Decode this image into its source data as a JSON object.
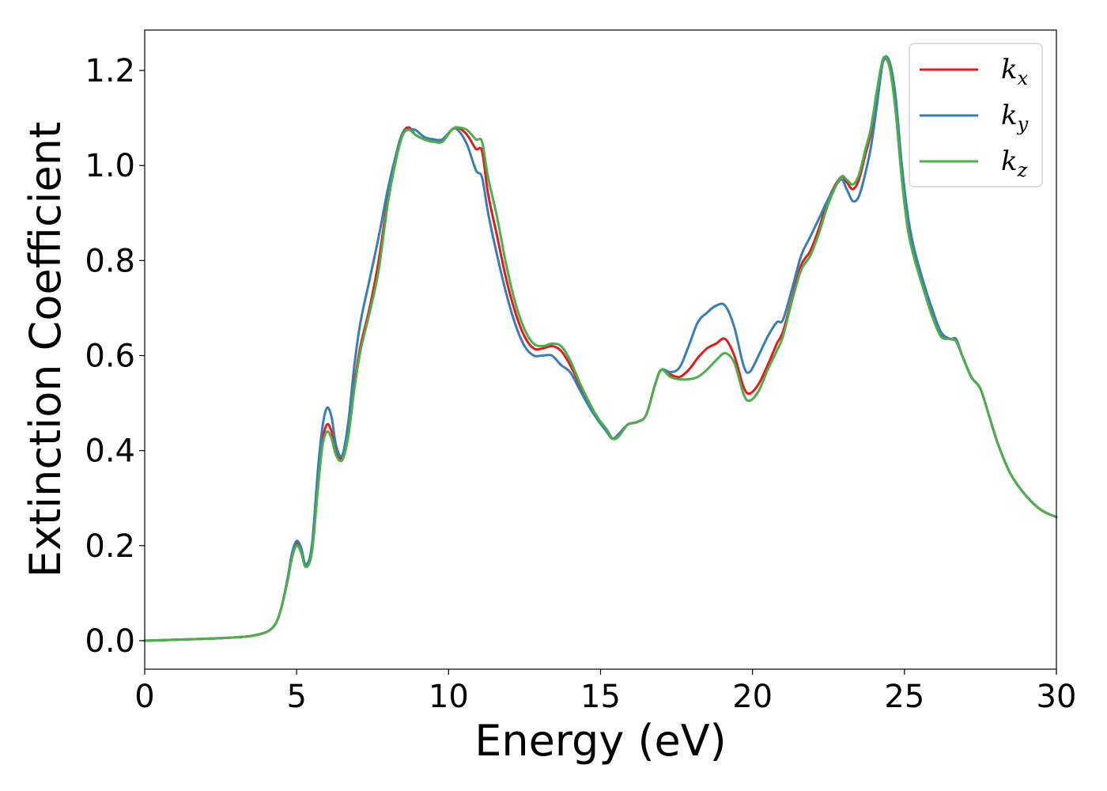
{
  "chart_data": {
    "type": "line",
    "xlabel": "Energy (eV)",
    "ylabel": "Extinction Coefficient",
    "xlim": [
      0,
      30
    ],
    "ylim": [
      -0.06,
      1.285
    ],
    "xticks": [
      0,
      5,
      10,
      15,
      20,
      25,
      30
    ],
    "yticks": [
      0.0,
      0.2,
      0.4,
      0.6,
      0.8,
      1.0,
      1.2
    ],
    "xtick_labels": [
      "0",
      "5",
      "10",
      "15",
      "20",
      "25",
      "30"
    ],
    "ytick_labels": [
      "0.0",
      "0.2",
      "0.4",
      "0.6",
      "0.8",
      "1.0",
      "1.2"
    ],
    "grid": false,
    "legend_position": "top-right",
    "series": [
      {
        "name": "k",
        "subscript": "x",
        "color": "#e41a1c",
        "x": [
          0,
          1,
          2,
          3,
          3.5,
          4,
          4.3,
          4.5,
          4.7,
          4.85,
          5.0,
          5.15,
          5.3,
          5.5,
          5.7,
          5.85,
          6.0,
          6.15,
          6.3,
          6.5,
          6.7,
          6.9,
          7.1,
          7.4,
          7.7,
          8.0,
          8.3,
          8.5,
          8.7,
          8.9,
          9.2,
          9.5,
          9.8,
          10.1,
          10.3,
          10.6,
          10.9,
          11.1,
          11.3,
          11.6,
          11.9,
          12.2,
          12.5,
          12.8,
          13.1,
          13.4,
          13.7,
          14.0,
          14.3,
          14.6,
          14.9,
          15.2,
          15.4,
          15.6,
          15.9,
          16.2,
          16.5,
          16.8,
          17.0,
          17.3,
          17.6,
          17.9,
          18.2,
          18.5,
          18.8,
          19.1,
          19.4,
          19.7,
          19.9,
          20.2,
          20.5,
          20.8,
          21.0,
          21.3,
          21.6,
          21.9,
          22.2,
          22.5,
          22.9,
          23.1,
          23.3,
          23.5,
          23.7,
          23.9,
          24.1,
          24.3,
          24.5,
          24.7,
          24.9,
          25.1,
          25.3,
          25.6,
          25.9,
          26.2,
          26.5,
          26.7,
          26.9,
          27.2,
          27.5,
          27.8,
          28.1,
          28.5,
          29.0,
          29.5,
          30.0
        ],
        "y": [
          0,
          0.002,
          0.004,
          0.007,
          0.01,
          0.018,
          0.035,
          0.07,
          0.13,
          0.18,
          0.205,
          0.19,
          0.16,
          0.19,
          0.33,
          0.42,
          0.455,
          0.44,
          0.4,
          0.385,
          0.44,
          0.54,
          0.62,
          0.7,
          0.8,
          0.93,
          1.03,
          1.07,
          1.08,
          1.065,
          1.055,
          1.05,
          1.055,
          1.075,
          1.08,
          1.065,
          1.035,
          1.03,
          0.94,
          0.85,
          0.76,
          0.69,
          0.64,
          0.615,
          0.615,
          0.62,
          0.61,
          0.58,
          0.54,
          0.5,
          0.47,
          0.44,
          0.425,
          0.435,
          0.455,
          0.46,
          0.475,
          0.54,
          0.57,
          0.56,
          0.555,
          0.57,
          0.595,
          0.615,
          0.625,
          0.635,
          0.6,
          0.535,
          0.52,
          0.54,
          0.58,
          0.625,
          0.65,
          0.72,
          0.79,
          0.82,
          0.87,
          0.93,
          0.975,
          0.965,
          0.95,
          0.97,
          1.02,
          1.07,
          1.15,
          1.22,
          1.21,
          1.13,
          0.99,
          0.88,
          0.82,
          0.75,
          0.69,
          0.645,
          0.635,
          0.63,
          0.6,
          0.555,
          0.53,
          0.47,
          0.41,
          0.35,
          0.305,
          0.275,
          0.26
        ]
      },
      {
        "name": "k",
        "subscript": "y",
        "color": "#377eb8",
        "x": [
          0,
          1,
          2,
          3,
          3.5,
          4,
          4.3,
          4.5,
          4.7,
          4.85,
          5.0,
          5.15,
          5.3,
          5.5,
          5.7,
          5.85,
          6.0,
          6.15,
          6.3,
          6.5,
          6.7,
          6.9,
          7.1,
          7.4,
          7.7,
          8.0,
          8.3,
          8.5,
          8.7,
          8.9,
          9.2,
          9.5,
          9.8,
          10.1,
          10.3,
          10.6,
          10.9,
          11.1,
          11.3,
          11.6,
          11.9,
          12.2,
          12.5,
          12.8,
          13.1,
          13.4,
          13.7,
          14.0,
          14.3,
          14.6,
          14.9,
          15.2,
          15.4,
          15.6,
          15.9,
          16.2,
          16.5,
          16.8,
          17.0,
          17.3,
          17.6,
          17.9,
          18.2,
          18.5,
          18.8,
          19.1,
          19.4,
          19.7,
          19.9,
          20.2,
          20.5,
          20.8,
          21.0,
          21.3,
          21.6,
          21.9,
          22.2,
          22.5,
          22.9,
          23.1,
          23.3,
          23.5,
          23.7,
          23.9,
          24.1,
          24.3,
          24.5,
          24.7,
          24.9,
          25.1,
          25.3,
          25.6,
          25.9,
          26.2,
          26.5,
          26.7,
          26.9,
          27.2,
          27.5,
          27.8,
          28.1,
          28.5,
          29.0,
          29.5,
          30.0
        ],
        "y": [
          0,
          0.002,
          0.004,
          0.007,
          0.01,
          0.018,
          0.035,
          0.07,
          0.13,
          0.185,
          0.21,
          0.195,
          0.16,
          0.2,
          0.36,
          0.45,
          0.49,
          0.47,
          0.41,
          0.39,
          0.46,
          0.58,
          0.67,
          0.76,
          0.85,
          0.95,
          1.03,
          1.07,
          1.075,
          1.075,
          1.06,
          1.055,
          1.055,
          1.075,
          1.075,
          1.045,
          0.99,
          0.975,
          0.9,
          0.81,
          0.73,
          0.665,
          0.62,
          0.6,
          0.6,
          0.6,
          0.58,
          0.565,
          0.53,
          0.495,
          0.465,
          0.44,
          0.425,
          0.435,
          0.455,
          0.46,
          0.475,
          0.54,
          0.57,
          0.565,
          0.575,
          0.62,
          0.67,
          0.69,
          0.705,
          0.705,
          0.66,
          0.58,
          0.565,
          0.6,
          0.64,
          0.67,
          0.675,
          0.74,
          0.81,
          0.85,
          0.89,
          0.93,
          0.97,
          0.95,
          0.925,
          0.935,
          0.98,
          1.04,
          1.13,
          1.22,
          1.22,
          1.15,
          1.01,
          0.9,
          0.83,
          0.76,
          0.7,
          0.65,
          0.635,
          0.635,
          0.6,
          0.555,
          0.53,
          0.47,
          0.41,
          0.35,
          0.305,
          0.275,
          0.26
        ]
      },
      {
        "name": "k",
        "subscript": "z",
        "color": "#4daf4a",
        "x": [
          0,
          1,
          2,
          3,
          3.5,
          4,
          4.3,
          4.5,
          4.7,
          4.85,
          5.0,
          5.15,
          5.3,
          5.5,
          5.7,
          5.85,
          6.0,
          6.15,
          6.3,
          6.5,
          6.7,
          6.9,
          7.1,
          7.4,
          7.7,
          8.0,
          8.3,
          8.5,
          8.7,
          8.9,
          9.2,
          9.5,
          9.8,
          10.1,
          10.3,
          10.6,
          10.9,
          11.1,
          11.3,
          11.6,
          11.9,
          12.2,
          12.5,
          12.8,
          13.1,
          13.4,
          13.7,
          14.0,
          14.3,
          14.6,
          14.9,
          15.2,
          15.4,
          15.6,
          15.9,
          16.2,
          16.5,
          16.8,
          17.0,
          17.3,
          17.6,
          17.9,
          18.2,
          18.5,
          18.8,
          19.1,
          19.4,
          19.7,
          19.9,
          20.2,
          20.5,
          20.8,
          21.0,
          21.3,
          21.6,
          21.9,
          22.2,
          22.5,
          22.9,
          23.1,
          23.3,
          23.5,
          23.7,
          23.9,
          24.1,
          24.3,
          24.5,
          24.7,
          24.9,
          25.1,
          25.3,
          25.6,
          25.9,
          26.2,
          26.5,
          26.7,
          26.9,
          27.2,
          27.5,
          27.8,
          28.1,
          28.5,
          29.0,
          29.5,
          30.0
        ],
        "y": [
          0,
          0.002,
          0.004,
          0.007,
          0.01,
          0.018,
          0.035,
          0.07,
          0.125,
          0.175,
          0.2,
          0.185,
          0.155,
          0.185,
          0.32,
          0.41,
          0.44,
          0.425,
          0.39,
          0.38,
          0.43,
          0.53,
          0.61,
          0.69,
          0.78,
          0.92,
          1.02,
          1.065,
          1.075,
          1.065,
          1.055,
          1.05,
          1.05,
          1.075,
          1.08,
          1.075,
          1.055,
          1.05,
          0.975,
          0.89,
          0.79,
          0.71,
          0.655,
          0.625,
          0.62,
          0.625,
          0.62,
          0.59,
          0.545,
          0.505,
          0.47,
          0.445,
          0.425,
          0.43,
          0.455,
          0.46,
          0.475,
          0.54,
          0.57,
          0.555,
          0.55,
          0.55,
          0.555,
          0.57,
          0.59,
          0.605,
          0.585,
          0.52,
          0.505,
          0.525,
          0.57,
          0.61,
          0.64,
          0.715,
          0.78,
          0.81,
          0.86,
          0.92,
          0.975,
          0.97,
          0.96,
          0.98,
          1.03,
          1.08,
          1.16,
          1.225,
          1.21,
          1.12,
          0.98,
          0.87,
          0.81,
          0.745,
          0.685,
          0.64,
          0.635,
          0.63,
          0.6,
          0.555,
          0.53,
          0.47,
          0.41,
          0.35,
          0.305,
          0.275,
          0.26
        ]
      }
    ]
  }
}
